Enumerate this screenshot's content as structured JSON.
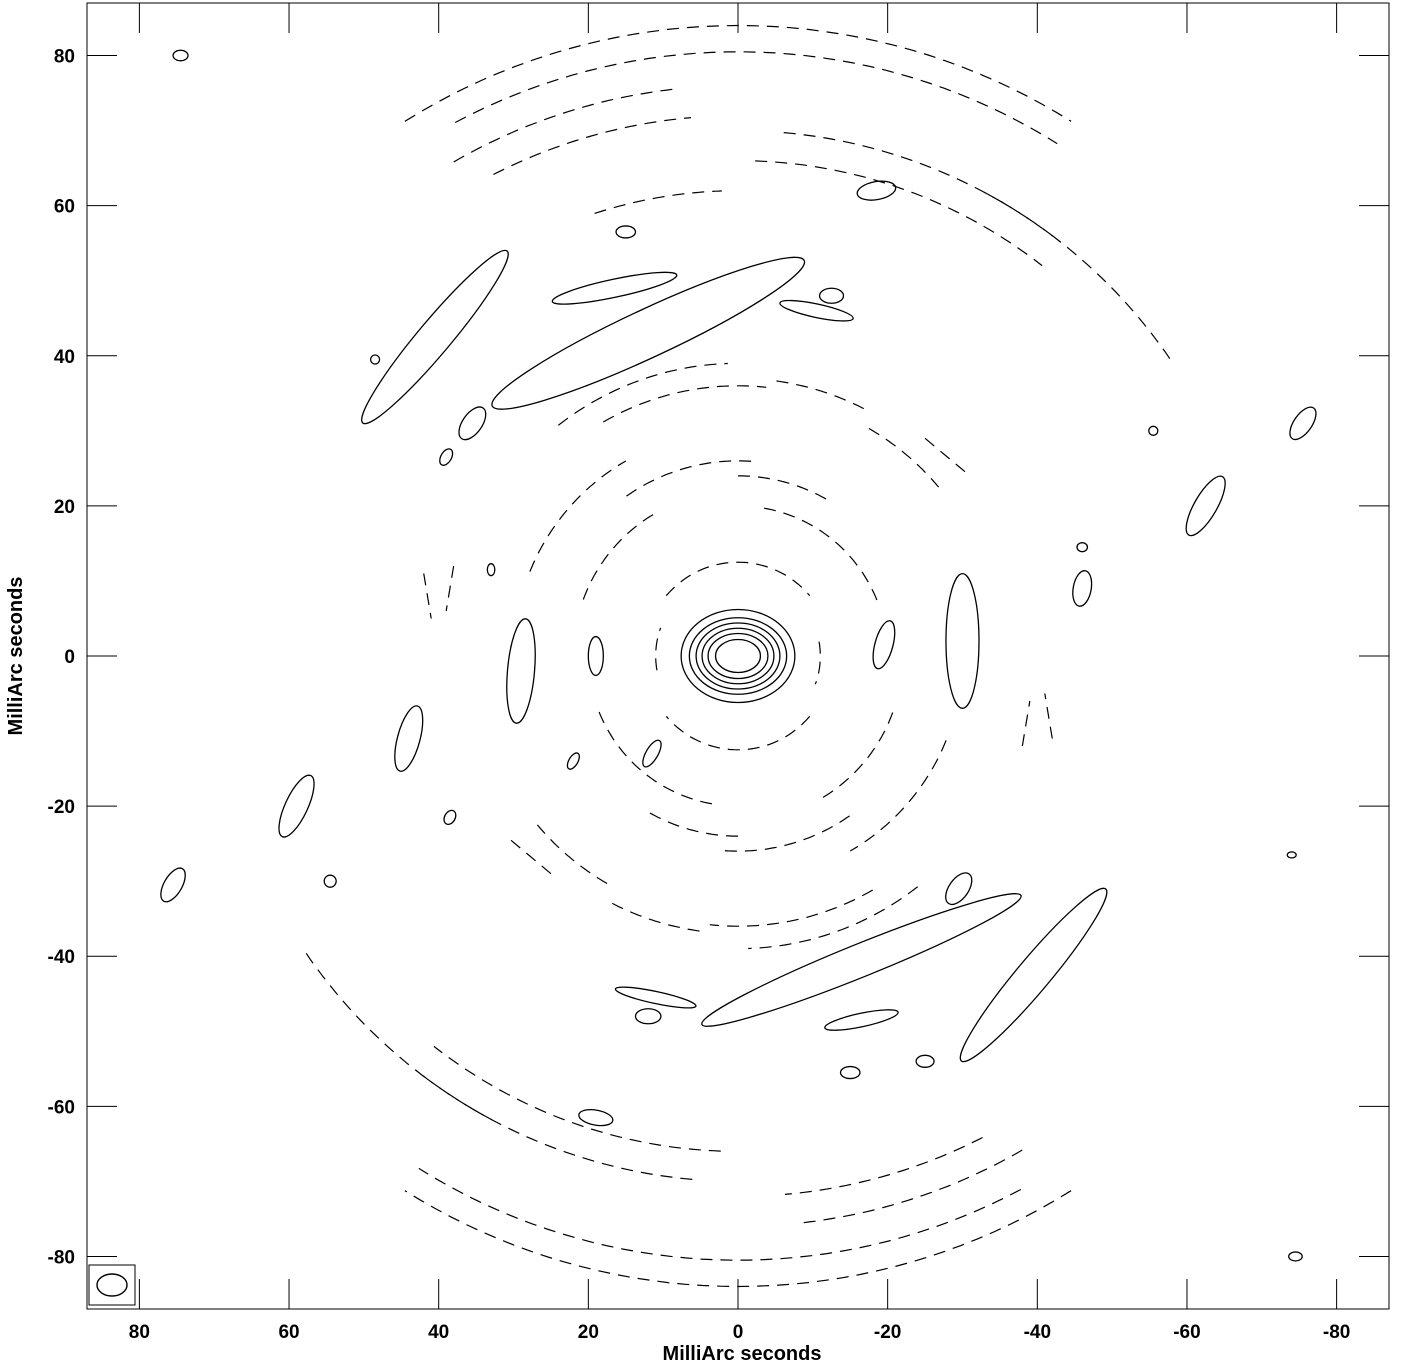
{
  "chart_data": {
    "type": "contour",
    "xlabel": "MilliArc seconds",
    "ylabel": "MilliArc seconds",
    "xlim": [
      87,
      -87
    ],
    "ylim": [
      -87,
      87
    ],
    "x_ticks": [
      80,
      60,
      40,
      20,
      0,
      -20,
      -40,
      -60,
      -80
    ],
    "y_ticks": [
      80,
      60,
      40,
      20,
      0,
      -20,
      -40,
      -60,
      -80
    ],
    "x_tick_labels": [
      "80",
      "60",
      "40",
      "20",
      "0",
      "-20",
      "-40",
      "-60",
      "-80"
    ],
    "y_tick_labels": [
      "80",
      "60",
      "40",
      "20",
      "0",
      "-20",
      "-40",
      "-60",
      "-80"
    ],
    "peak": {
      "x": 0,
      "y": 0
    },
    "core_contours": [
      {
        "rx": 3.0,
        "ry": 2.2
      },
      {
        "rx": 4.0,
        "ry": 3.0
      },
      {
        "rx": 4.8,
        "ry": 3.7
      },
      {
        "rx": 5.6,
        "ry": 4.4
      },
      {
        "rx": 6.5,
        "ry": 5.1
      },
      {
        "rx": 7.6,
        "ry": 6.2
      }
    ],
    "positive_features": [
      {
        "x": 40.5,
        "y": 42.5,
        "rx": 15,
        "ry": 2.2,
        "angle": 50
      },
      {
        "x": 12,
        "y": 43,
        "rx": 23,
        "ry": 3.2,
        "angle": 25
      },
      {
        "x": 16.5,
        "y": 49,
        "rx": 8.5,
        "ry": 1.2,
        "angle": 12
      },
      {
        "x": -10.5,
        "y": 46,
        "rx": 5,
        "ry": 0.9,
        "angle": -12
      },
      {
        "x": -12.5,
        "y": 48,
        "rx": 1.6,
        "ry": 1.0,
        "angle": 0
      },
      {
        "x": -18.5,
        "y": 62,
        "rx": 2.6,
        "ry": 1.2,
        "angle": 10
      },
      {
        "x": 15,
        "y": 56.5,
        "rx": 1.3,
        "ry": 0.8,
        "angle": 0
      },
      {
        "x": 35.5,
        "y": 31,
        "rx": 2.5,
        "ry": 1.3,
        "angle": 55
      },
      {
        "x": 39,
        "y": 26.5,
        "rx": 1.2,
        "ry": 0.7,
        "angle": 60
      },
      {
        "x": 29,
        "y": -2,
        "rx": 7,
        "ry": 1.8,
        "angle": 85
      },
      {
        "x": 19,
        "y": 0,
        "rx": 2.6,
        "ry": 1.0,
        "angle": 90
      },
      {
        "x": -19.5,
        "y": 1.5,
        "rx": 3.3,
        "ry": 1.2,
        "angle": 75
      },
      {
        "x": -30,
        "y": 2,
        "rx": 9,
        "ry": 2.2,
        "angle": 90
      },
      {
        "x": 44,
        "y": -11,
        "rx": 4.5,
        "ry": 1.5,
        "angle": 75
      },
      {
        "x": 59,
        "y": -20,
        "rx": 4.5,
        "ry": 1.5,
        "angle": 65
      },
      {
        "x": 75.5,
        "y": -30.5,
        "rx": 2.5,
        "ry": 1.2,
        "angle": 60
      },
      {
        "x": -62.5,
        "y": 20,
        "rx": 4.5,
        "ry": 1.5,
        "angle": 60
      },
      {
        "x": -75.5,
        "y": 31,
        "rx": 2.5,
        "ry": 1.2,
        "angle": 55
      },
      {
        "x": -46,
        "y": 9,
        "rx": 2.4,
        "ry": 1.2,
        "angle": 80
      },
      {
        "x": -29.5,
        "y": -31,
        "rx": 2.4,
        "ry": 1.3,
        "angle": 55
      },
      {
        "x": 11.5,
        "y": -13,
        "rx": 2.0,
        "ry": 0.8,
        "angle": 60
      },
      {
        "x": 22,
        "y": -14,
        "rx": 1.2,
        "ry": 0.6,
        "angle": 60
      },
      {
        "x": 38.5,
        "y": -21.5,
        "rx": 1.0,
        "ry": 0.7,
        "angle": 60
      },
      {
        "x": -16.5,
        "y": -40.5,
        "rx": 23,
        "ry": 2.2,
        "angle": 22
      },
      {
        "x": -39.5,
        "y": -42.5,
        "rx": 15,
        "ry": 2.2,
        "angle": 50
      },
      {
        "x": -16.5,
        "y": -48.5,
        "rx": 5,
        "ry": 0.9,
        "angle": 12
      },
      {
        "x": 11,
        "y": -45.5,
        "rx": 5.5,
        "ry": 0.8,
        "angle": -12
      },
      {
        "x": 12,
        "y": -48,
        "rx": 1.7,
        "ry": 1.0,
        "angle": 0
      },
      {
        "x": -15,
        "y": -55.5,
        "rx": 1.3,
        "ry": 0.8,
        "angle": 0
      },
      {
        "x": -25,
        "y": -54,
        "rx": 1.2,
        "ry": 0.8,
        "angle": 0
      },
      {
        "x": 19,
        "y": -61.5,
        "rx": 2.3,
        "ry": 1.0,
        "angle": -10
      },
      {
        "x": 74.5,
        "y": 80,
        "rx": 1.0,
        "ry": 0.7,
        "angle": 0
      },
      {
        "x": -74.5,
        "y": -80,
        "rx": 0.9,
        "ry": 0.6,
        "angle": 0
      },
      {
        "x": 54.5,
        "y": -30,
        "rx": 0.8,
        "ry": 0.8,
        "angle": 0
      },
      {
        "x": 48.5,
        "y": 39.5,
        "rx": 0.6,
        "ry": 0.6,
        "angle": 0
      },
      {
        "x": -55.5,
        "y": 30,
        "rx": 0.6,
        "ry": 0.6,
        "angle": 0
      },
      {
        "x": -46,
        "y": 14.5,
        "rx": 0.7,
        "ry": 0.6,
        "angle": 0
      },
      {
        "x": -74,
        "y": -26.5,
        "rx": 0.6,
        "ry": 0.4,
        "angle": 0
      },
      {
        "x": 33,
        "y": 11.5,
        "rx": 0.5,
        "ry": 0.8,
        "angle": 0
      }
    ],
    "negative_features": [
      {
        "type": "arc",
        "cx": 0,
        "cy": 0,
        "r": 84,
        "a1": 58,
        "a2": 122,
        "dy": 0
      },
      {
        "type": "arc",
        "cx": 0,
        "cy": 0,
        "r": 80.5,
        "a1": 62,
        "a2": 122,
        "dy": 0
      },
      {
        "type": "arc",
        "cx": 0,
        "cy": 0,
        "r": 76,
        "a1": 60,
        "a2": 84,
        "dy": 0
      },
      {
        "type": "arc",
        "cx": 0,
        "cy": 0,
        "r": 72,
        "a1": 63,
        "a2": 85,
        "dy": 0
      },
      {
        "type": "arc",
        "cx": 0,
        "cy": 0,
        "r": 70,
        "a1": 95,
        "a2": 128,
        "dy": 0
      },
      {
        "type": "arc",
        "cx": 0,
        "cy": 0,
        "r": 66,
        "a1": 92,
        "a2": 128,
        "dy": 0
      },
      {
        "type": "arc",
        "cx": 0,
        "cy": 0,
        "r": 62,
        "a1": 72,
        "a2": 88,
        "dy": 0
      },
      {
        "type": "arc",
        "cx": 0,
        "cy": 0,
        "r": 70,
        "a1": 118,
        "a2": 146,
        "dy": 0
      },
      {
        "type": "arc",
        "cx": 0,
        "cy": 0,
        "r": 39,
        "a1": 52,
        "a2": 88,
        "dy": 0
      },
      {
        "type": "arc",
        "cx": 0,
        "cy": 0,
        "r": 36,
        "a1": 60,
        "a2": 96,
        "dy": 0
      },
      {
        "type": "arc",
        "cx": 0,
        "cy": 0,
        "r": 37,
        "a1": 98,
        "a2": 118,
        "dy": 0
      },
      {
        "type": "arc",
        "cx": 0,
        "cy": 0,
        "r": 35,
        "a1": 120,
        "a2": 140,
        "dy": 0
      },
      {
        "type": "arc",
        "cx": 0,
        "cy": 0,
        "r": 30,
        "a1": 22,
        "a2": 60,
        "dy": 0
      },
      {
        "type": "arc",
        "cx": 0,
        "cy": 0,
        "r": 26,
        "a1": 55,
        "a2": 96,
        "dy": 0
      },
      {
        "type": "arc",
        "cx": 0,
        "cy": 0,
        "r": 24,
        "a1": 90,
        "a2": 120,
        "dy": 0
      },
      {
        "type": "arc",
        "cx": 0,
        "cy": 0,
        "r": 22,
        "a1": 20,
        "a2": 60,
        "dy": 0
      },
      {
        "type": "arc",
        "cx": 0,
        "cy": 0,
        "r": 20,
        "a1": 100,
        "a2": 160,
        "dy": 0
      },
      {
        "type": "arc",
        "cx": 0,
        "cy": 0,
        "r": 12.5,
        "a1": 40,
        "a2": 140,
        "dy": 0
      },
      {
        "type": "arc",
        "cx": 0,
        "cy": 0,
        "r": 11,
        "a1": 170,
        "a2": 200,
        "dy": 0
      },
      {
        "type": "arc",
        "cx": 0,
        "cy": 0,
        "r": 84,
        "a1": 238,
        "a2": 302,
        "dy": 0
      },
      {
        "type": "arc",
        "cx": 0,
        "cy": 0,
        "r": 80.5,
        "a1": 242,
        "a2": 302,
        "dy": 0
      },
      {
        "type": "arc",
        "cx": 0,
        "cy": 0,
        "r": 76,
        "a1": 240,
        "a2": 264,
        "dy": 0
      },
      {
        "type": "arc",
        "cx": 0,
        "cy": 0,
        "r": 72,
        "a1": 243,
        "a2": 265,
        "dy": 0
      },
      {
        "type": "arc",
        "cx": 0,
        "cy": 0,
        "r": 70,
        "a1": 275,
        "a2": 308,
        "dy": 0
      },
      {
        "type": "arc",
        "cx": 0,
        "cy": 0,
        "r": 66,
        "a1": 272,
        "a2": 308,
        "dy": 0
      },
      {
        "type": "arc",
        "cx": 0,
        "cy": 0,
        "r": 70,
        "a1": 298,
        "a2": 326,
        "dy": 0
      },
      {
        "type": "arc",
        "cx": 0,
        "cy": 0,
        "r": 39,
        "a1": 232,
        "a2": 268,
        "dy": 0
      },
      {
        "type": "arc",
        "cx": 0,
        "cy": 0,
        "r": 36,
        "a1": 240,
        "a2": 276,
        "dy": 0
      },
      {
        "type": "arc",
        "cx": 0,
        "cy": 0,
        "r": 37,
        "a1": 278,
        "a2": 298,
        "dy": 0
      },
      {
        "type": "arc",
        "cx": 0,
        "cy": 0,
        "r": 35,
        "a1": 300,
        "a2": 320,
        "dy": 0
      },
      {
        "type": "arc",
        "cx": 0,
        "cy": 0,
        "r": 30,
        "a1": 202,
        "a2": 240,
        "dy": 0
      },
      {
        "type": "arc",
        "cx": 0,
        "cy": 0,
        "r": 26,
        "a1": 235,
        "a2": 276,
        "dy": 0
      },
      {
        "type": "arc",
        "cx": 0,
        "cy": 0,
        "r": 24,
        "a1": 270,
        "a2": 300,
        "dy": 0
      },
      {
        "type": "arc",
        "cx": 0,
        "cy": 0,
        "r": 22,
        "a1": 200,
        "a2": 240,
        "dy": 0
      },
      {
        "type": "arc",
        "cx": 0,
        "cy": 0,
        "r": 20,
        "a1": 280,
        "a2": 340,
        "dy": 0
      },
      {
        "type": "arc",
        "cx": 0,
        "cy": 0,
        "r": 12.5,
        "a1": 220,
        "a2": 320,
        "dy": 0
      },
      {
        "type": "arc",
        "cx": 0,
        "cy": 0,
        "r": 11,
        "a1": 350,
        "a2": 380,
        "dy": 0
      },
      {
        "type": "seg",
        "x1": 42,
        "y1": 11,
        "x2": 41,
        "y2": 5
      },
      {
        "type": "seg",
        "x1": 38,
        "y1": 12,
        "x2": 39,
        "y2": 6
      },
      {
        "type": "seg",
        "x1": -42,
        "y1": -11,
        "x2": -41,
        "y2": -5
      },
      {
        "type": "seg",
        "x1": -38,
        "y1": -12,
        "x2": -39,
        "y2": -6
      },
      {
        "type": "seg",
        "x1": -25,
        "y1": 29,
        "x2": -31,
        "y2": 24
      },
      {
        "type": "seg",
        "x1": 25,
        "y1": -29,
        "x2": 31,
        "y2": -24
      }
    ],
    "beam": {
      "x": 83,
      "y": -83,
      "rx": 2.0,
      "ry": 1.5
    }
  }
}
